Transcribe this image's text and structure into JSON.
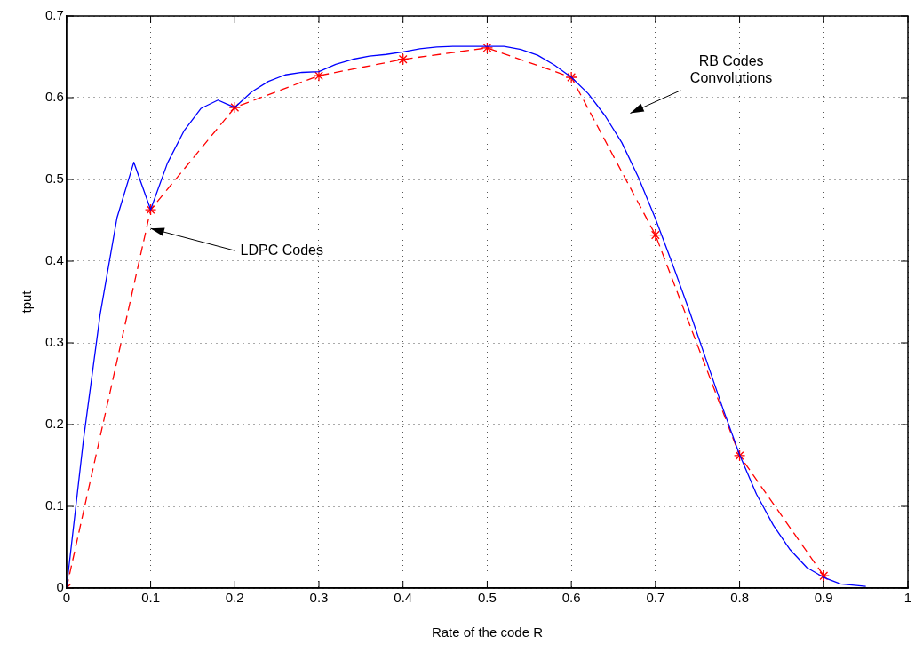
{
  "chart_data": {
    "type": "line",
    "xlabel": "Rate of the code R",
    "ylabel": "tput",
    "xlim": [
      0,
      1
    ],
    "xticks": [
      0,
      0.1,
      0.2,
      0.3,
      0.4,
      0.5,
      0.6,
      0.7,
      0.8,
      0.9,
      1
    ],
    "ylim": [
      0,
      0.7
    ],
    "yticks": [
      0,
      0.1,
      0.2,
      0.3,
      0.4,
      0.5,
      0.6,
      0.7
    ],
    "grid": true,
    "legend": false,
    "series": [
      {
        "color": "#0000ff",
        "marker": "none",
        "line_style": "solid",
        "x": [
          0,
          0.02,
          0.04,
          0.06,
          0.08,
          0.1,
          0.12,
          0.14,
          0.16,
          0.18,
          0.2,
          0.22,
          0.24,
          0.26,
          0.28,
          0.3,
          0.32,
          0.34,
          0.36,
          0.38,
          0.4,
          0.42,
          0.44,
          0.46,
          0.48,
          0.5,
          0.52,
          0.54,
          0.56,
          0.58,
          0.6,
          0.62,
          0.64,
          0.66,
          0.68,
          0.7,
          0.72,
          0.74,
          0.76,
          0.78,
          0.8,
          0.82,
          0.84,
          0.86,
          0.88,
          0.9,
          0.92,
          0.95
        ],
        "values": [
          0,
          0.18,
          0.335,
          0.453,
          0.521,
          0.463,
          0.52,
          0.56,
          0.587,
          0.597,
          0.588,
          0.607,
          0.62,
          0.628,
          0.631,
          0.632,
          0.641,
          0.647,
          0.651,
          0.653,
          0.656,
          0.66,
          0.662,
          0.663,
          0.663,
          0.663,
          0.663,
          0.659,
          0.652,
          0.64,
          0.625,
          0.605,
          0.578,
          0.545,
          0.502,
          0.452,
          0.397,
          0.34,
          0.28,
          0.22,
          0.163,
          0.115,
          0.077,
          0.047,
          0.025,
          0.013,
          0.005,
          0.002
        ]
      },
      {
        "color": "#ff0000",
        "marker": "cross",
        "line_style": "dashed",
        "x": [
          0,
          0.1,
          0.2,
          0.3,
          0.4,
          0.5,
          0.6,
          0.7,
          0.8,
          0.9
        ],
        "values": [
          0,
          0.463,
          0.588,
          0.627,
          0.647,
          0.661,
          0.625,
          0.432,
          0.162,
          0.015
        ]
      }
    ],
    "annotations": [
      {
        "text": "LDPC Codes",
        "x": 0.1,
        "y": 0.44
      },
      "RB Codes\nConvolutions"
    ]
  }
}
